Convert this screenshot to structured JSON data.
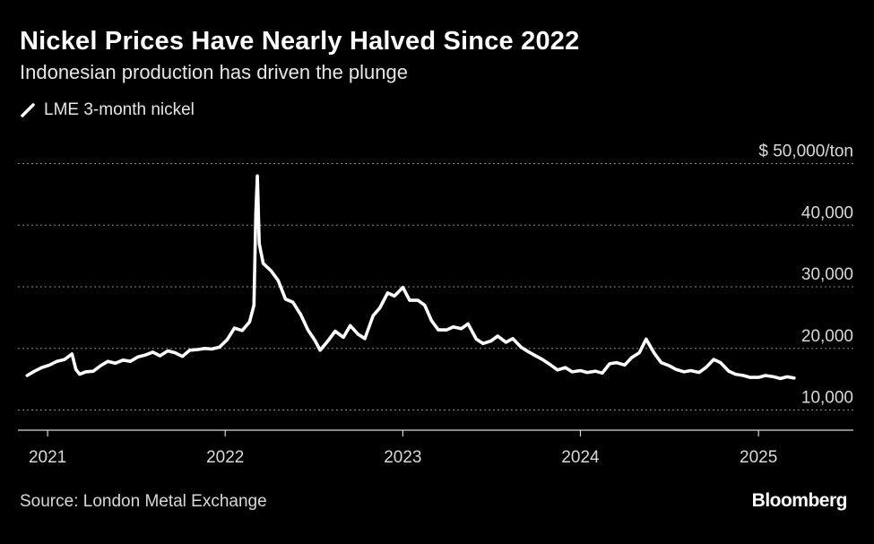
{
  "header": {
    "title": "Nickel Prices Have Nearly Halved Since 2022",
    "subtitle": "Indonesian production has driven the plunge"
  },
  "footer": {
    "source": "Source: London Metal Exchange",
    "brand": "Bloomberg"
  },
  "colors": {
    "background": "#000000",
    "line": "#ffffff",
    "grid": "#8c8c8c"
  },
  "legend_icon": "white-slash-line-icon",
  "chart_data": {
    "type": "line",
    "title": "Nickel Prices Have Nearly Halved Since 2022",
    "subtitle": "Indonesian production has driven the plunge",
    "ylabel": "$50,000/ton",
    "ylim": [
      8000,
      50000
    ],
    "xlim": [
      "2020-11-01",
      "2025-07-15"
    ],
    "y_ticks": [
      10000,
      20000,
      30000,
      40000,
      50000
    ],
    "y_tick_labels": [
      "10,000",
      "20,000",
      "30,000",
      "40,000",
      "$ 50,000/ton"
    ],
    "x_ticks": [
      "2021-01-01",
      "2022-01-01",
      "2023-01-01",
      "2024-01-01",
      "2025-01-01"
    ],
    "x_tick_labels": [
      "2021",
      "2022",
      "2023",
      "2024",
      "2025"
    ],
    "grid": "horizontal dotted",
    "legend_position": "top-left",
    "series": [
      {
        "name": "LME 3-month nickel",
        "x": [
          "2020-11-20",
          "2020-12-05",
          "2020-12-20",
          "2021-01-05",
          "2021-01-20",
          "2021-02-05",
          "2021-02-20",
          "2021-02-28",
          "2021-03-08",
          "2021-03-20",
          "2021-04-05",
          "2021-04-20",
          "2021-05-05",
          "2021-05-20",
          "2021-06-05",
          "2021-06-20",
          "2021-07-05",
          "2021-07-20",
          "2021-08-05",
          "2021-08-20",
          "2021-09-05",
          "2021-09-20",
          "2021-10-05",
          "2021-10-20",
          "2021-11-05",
          "2021-11-20",
          "2021-12-05",
          "2021-12-20",
          "2022-01-05",
          "2022-01-20",
          "2022-02-05",
          "2022-02-20",
          "2022-03-01",
          "2022-03-05",
          "2022-03-08",
          "2022-03-12",
          "2022-03-20",
          "2022-04-05",
          "2022-04-20",
          "2022-05-05",
          "2022-05-20",
          "2022-06-05",
          "2022-06-20",
          "2022-07-05",
          "2022-07-15",
          "2022-08-01",
          "2022-08-15",
          "2022-09-01",
          "2022-09-15",
          "2022-10-01",
          "2022-10-15",
          "2022-11-01",
          "2022-11-15",
          "2022-12-01",
          "2022-12-15",
          "2023-01-01",
          "2023-01-15",
          "2023-02-01",
          "2023-02-15",
          "2023-03-01",
          "2023-03-15",
          "2023-04-01",
          "2023-04-15",
          "2023-05-01",
          "2023-05-15",
          "2023-06-01",
          "2023-06-15",
          "2023-07-01",
          "2023-07-15",
          "2023-08-01",
          "2023-08-15",
          "2023-09-01",
          "2023-09-15",
          "2023-10-01",
          "2023-10-15",
          "2023-11-01",
          "2023-11-15",
          "2023-12-01",
          "2023-12-15",
          "2024-01-01",
          "2024-01-15",
          "2024-02-01",
          "2024-02-15",
          "2024-03-01",
          "2024-03-15",
          "2024-04-01",
          "2024-04-15",
          "2024-05-01",
          "2024-05-15",
          "2024-06-01",
          "2024-06-15",
          "2024-07-01",
          "2024-07-15",
          "2024-08-01",
          "2024-08-15",
          "2024-09-01",
          "2024-09-15",
          "2024-10-01",
          "2024-10-15",
          "2024-11-01",
          "2024-11-15",
          "2024-12-01",
          "2024-12-15",
          "2025-01-01",
          "2025-01-15",
          "2025-02-01",
          "2025-02-15",
          "2025-03-01",
          "2025-03-15"
        ],
        "y": [
          15600,
          16300,
          16900,
          17300,
          17900,
          18200,
          19100,
          16600,
          15800,
          16200,
          16300,
          17200,
          17900,
          17600,
          18100,
          17900,
          18600,
          18900,
          19400,
          18800,
          19600,
          19300,
          18700,
          19700,
          19800,
          20000,
          19900,
          20200,
          21400,
          23300,
          22900,
          24300,
          27000,
          42000,
          48000,
          37000,
          33800,
          32600,
          31000,
          28000,
          27500,
          25500,
          23000,
          21200,
          19700,
          21300,
          22800,
          21800,
          23700,
          22300,
          21600,
          25300,
          26600,
          29000,
          28500,
          29900,
          27800,
          27800,
          27000,
          24500,
          23000,
          23000,
          23500,
          23200,
          24000,
          21500,
          20800,
          21200,
          22000,
          21000,
          21600,
          20200,
          19500,
          18800,
          18200,
          17300,
          16500,
          16900,
          16200,
          16400,
          16100,
          16300,
          16000,
          17500,
          17700,
          17300,
          18500,
          19300,
          21500,
          19200,
          17700,
          17200,
          16600,
          16200,
          16400,
          16100,
          16900,
          18200,
          17700,
          16300,
          15800,
          15600,
          15300,
          15300,
          15600,
          15400,
          15100,
          15400,
          15200
        ]
      }
    ]
  }
}
